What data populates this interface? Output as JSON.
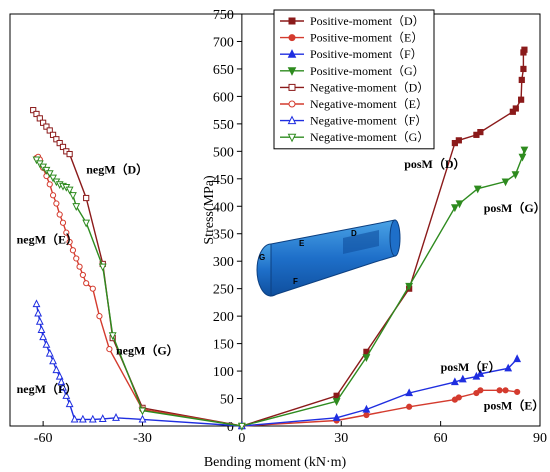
{
  "chart_data": {
    "type": "line",
    "xlabel": "Bending moment (kN·m)",
    "ylabel": "Stress(MPa)",
    "xlim": [
      -70,
      90
    ],
    "ylim": [
      0,
      750
    ],
    "xticks": [
      -60,
      -30,
      0,
      30,
      60,
      90
    ],
    "yticks": [
      0,
      50,
      100,
      150,
      200,
      250,
      300,
      350,
      400,
      450,
      500,
      550,
      600,
      650,
      700,
      750
    ],
    "legend_position": "top-right",
    "series": [
      {
        "name": "Positive-moment（D）",
        "color": "#8b1a1a",
        "marker": "square",
        "filled": true,
        "x": [
          0,
          28.6,
          37.6,
          50.5,
          64.3,
          65.5,
          70.8,
          72,
          81.8,
          82.7,
          84.3,
          84.5,
          85,
          85,
          85.3
        ],
        "y": [
          0,
          55,
          135,
          250,
          515,
          520,
          530,
          535,
          572,
          578,
          594,
          630,
          650,
          680,
          685
        ]
      },
      {
        "name": "Positive-moment（E）",
        "color": "#d43b2e",
        "marker": "circle",
        "filled": true,
        "x": [
          0,
          28.6,
          37.6,
          50.5,
          64.3,
          65.5,
          70.8,
          72,
          77.8,
          79.6,
          83.1
        ],
        "y": [
          0,
          10,
          20,
          35,
          48,
          52,
          60,
          65,
          65,
          65,
          62
        ]
      },
      {
        "name": "Positive-moment（F）",
        "color": "#1f2ee0",
        "marker": "triangle",
        "filled": true,
        "x": [
          0,
          28.6,
          37.6,
          50.5,
          64.3,
          66.7,
          70.8,
          72,
          80.4,
          83.1
        ],
        "y": [
          0,
          15,
          30,
          60,
          80,
          85,
          90,
          95,
          105,
          122
        ]
      },
      {
        "name": "Positive-moment（G）",
        "color": "#2e8b1f",
        "marker": "triangle-down",
        "filled": true,
        "x": [
          0,
          28.6,
          37.6,
          50.5,
          64.3,
          65.7,
          71.2,
          79.6,
          82.6,
          84.7,
          85.3
        ],
        "y": [
          0,
          45,
          125,
          255,
          398,
          405,
          432,
          445,
          458,
          490,
          503
        ]
      },
      {
        "name": "Negative-moment（D）",
        "color": "#8b1a1a",
        "marker": "square",
        "filled": false,
        "x": [
          -63,
          -62,
          -61,
          -60,
          -59,
          -58,
          -57,
          -56,
          -55,
          -54,
          -53,
          -52,
          -47,
          -42,
          -39,
          -30,
          0
        ],
        "y": [
          575,
          568,
          560,
          552,
          545,
          538,
          530,
          522,
          515,
          508,
          500,
          495,
          415,
          295,
          160,
          33,
          0
        ]
      },
      {
        "name": "Negative-moment（E）",
        "color": "#d43b2e",
        "marker": "circle",
        "filled": false,
        "x": [
          -62,
          -61.5,
          -61,
          -60,
          -59,
          -58,
          -57,
          -56,
          -55,
          -54,
          -53,
          -52,
          -51,
          -50,
          -49,
          -48,
          -47,
          -45,
          -43,
          -40,
          -30,
          0
        ],
        "y": [
          488,
          490,
          485,
          470,
          455,
          440,
          420,
          405,
          385,
          370,
          352,
          335,
          320,
          305,
          290,
          275,
          260,
          250,
          200,
          140,
          30,
          0
        ]
      },
      {
        "name": "Negative-moment（F）",
        "color": "#1f2ee0",
        "marker": "triangle",
        "filled": false,
        "x": [
          -62,
          -61.5,
          -61,
          -60.5,
          -60,
          -59,
          -58,
          -57,
          -56,
          -55,
          -54.5,
          -54,
          -53,
          -52,
          -50.5,
          -48,
          -45,
          -42,
          -38,
          -30,
          0
        ],
        "y": [
          222,
          205,
          190,
          175,
          162,
          148,
          132,
          118,
          102,
          90,
          80,
          70,
          55,
          40,
          12,
          12,
          12,
          13,
          15,
          12,
          0
        ]
      },
      {
        "name": "Negative-moment（G）",
        "color": "#2e8b1f",
        "marker": "triangle-down",
        "filled": false,
        "x": [
          -62,
          -61,
          -60,
          -59,
          -58,
          -57,
          -56,
          -55,
          -54,
          -53,
          -52,
          -51,
          -50,
          -47,
          -42,
          -39,
          -30,
          0
        ],
        "y": [
          485,
          478,
          472,
          466,
          460,
          452,
          445,
          440,
          437,
          435,
          430,
          420,
          400,
          370,
          290,
          165,
          28,
          0
        ]
      }
    ],
    "annotations": [
      {
        "text": "negM（D）",
        "x": -47,
        "y": 460
      },
      {
        "text": "negM（E）",
        "x": -68,
        "y": 332
      },
      {
        "text": "negM（G）",
        "x": -38,
        "y": 130
      },
      {
        "text": "negM（F）",
        "x": -68,
        "y": 60
      },
      {
        "text": "posM（D）",
        "x": 49,
        "y": 470
      },
      {
        "text": "posM（G）",
        "x": 73,
        "y": 390
      },
      {
        "text": "posM（F）",
        "x": 60,
        "y": 100
      },
      {
        "text": "posM（E）",
        "x": 73,
        "y": 30
      }
    ],
    "inset_labels": [
      "G",
      "E",
      "D",
      "F"
    ]
  }
}
